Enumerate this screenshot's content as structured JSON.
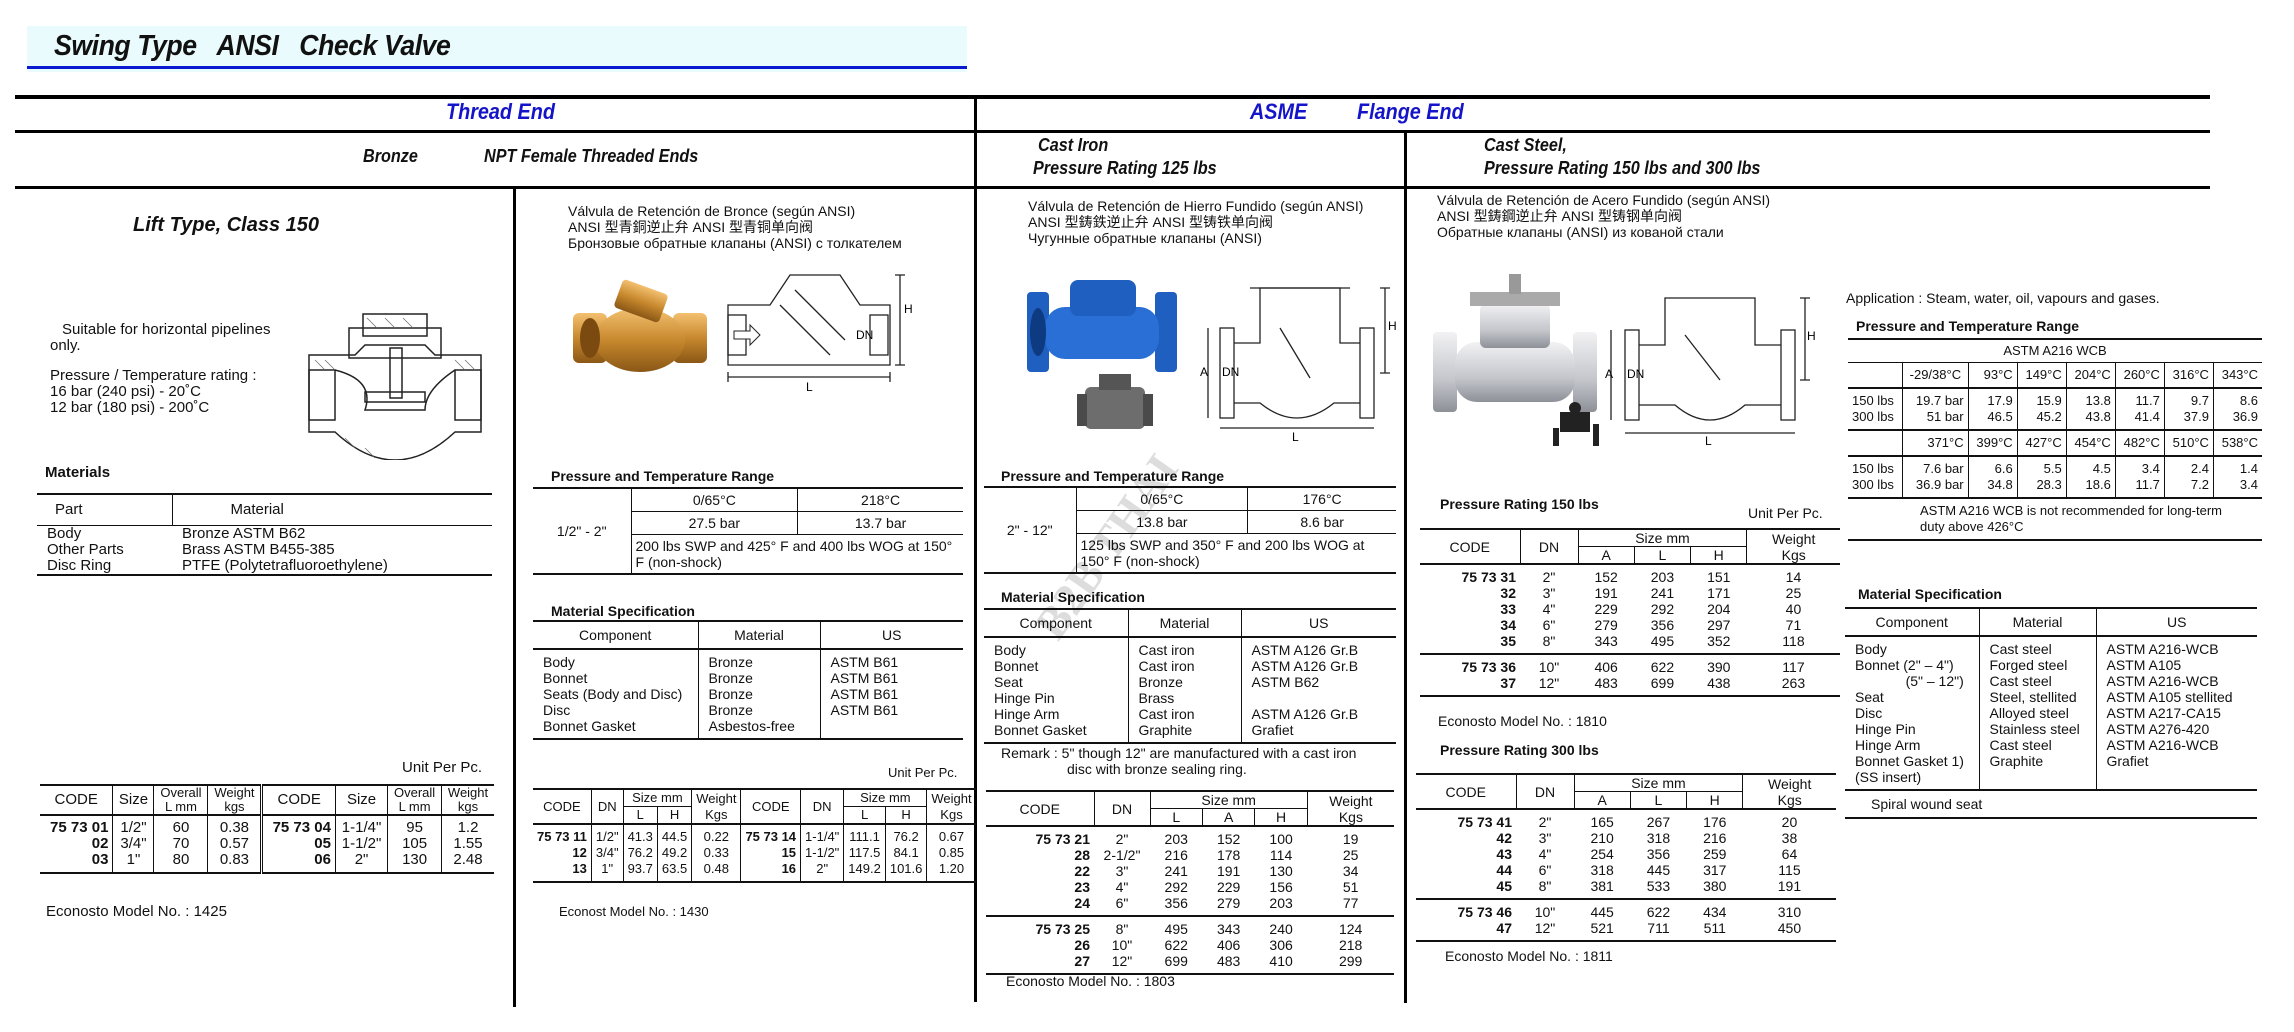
{
  "title": "Swing Type   ANSI   Check Valve",
  "sections": {
    "thread_end": "Thread End",
    "asme": "ASME",
    "flange_end": "Flange End"
  },
  "subheaders": {
    "bronze": "Bronze",
    "npt": "NPT Female Threaded Ends",
    "cast_iron": "Cast Iron",
    "cast_iron_rating": "Pressure Rating 125 lbs",
    "cast_steel": "Cast Steel,",
    "cast_steel_rating": "Pressure Rating 150 lbs and 300 lbs"
  },
  "watermark": "B2B THAI",
  "drawing_labels": {
    "h": "H",
    "dn": "DN",
    "l": "L",
    "a": "A"
  },
  "lift": {
    "title": "Lift Type, Class 150",
    "desc": [
      "Suitable for horizontal pipelines",
      "only.",
      "Pressure / Temperature rating :",
      "16 bar (240 psi) -  20˚C",
      "12 bar (180 psi) - 200˚C"
    ],
    "materials_heading": "Materials",
    "materials_headers": [
      "Part",
      "Material"
    ],
    "materials": [
      [
        "Body",
        "Bronze  ASTM B62"
      ],
      [
        "Other Parts",
        "Brass    ASTM B455-385"
      ],
      [
        "Disc Ring",
        "PTFE (Polytetrafluoroethylene)"
      ]
    ],
    "unit": "Unit Per Pc.",
    "headers": [
      "CODE",
      "Size",
      "Overall",
      "L mm",
      "Weight",
      "kgs"
    ],
    "rows": [
      [
        "75 73 01",
        "1/2\"",
        "60",
        "0.38",
        "75 73 04",
        "1-1/4\"",
        "95",
        "1.2"
      ],
      [
        "02",
        "3/4\"",
        "70",
        "0.57",
        "05",
        "1-1/2\"",
        "105",
        "1.55"
      ],
      [
        "03",
        "1\"",
        "80",
        "0.83",
        "06",
        "2\"",
        "130",
        "2.48"
      ]
    ],
    "model": "Econosto Model No. : 1425"
  },
  "bronze": {
    "names": [
      "Válvula de Retención de Bronce (según ANSI)",
      "ANSI 型青銅逆止弁     ANSI 型青铜单向阀",
      "Бронзовые обратные клапаны (ANSI)    с толкателем"
    ],
    "pt_heading": "Pressure and Temperature Range",
    "pt": {
      "size": "1/2\" - 2\"",
      "t1": "0/65°C",
      "t2": "218°C",
      "p1": "27.5 bar",
      "p2": "13.7 bar",
      "note": "200 lbs SWP and 425° F and 400 lbs WOG at 150° F (non-shock)"
    },
    "ms_heading": "Material Specification",
    "ms_headers": [
      "Component",
      "Material",
      "US"
    ],
    "ms": [
      [
        "Body",
        "Bronze",
        "ASTM B61"
      ],
      [
        "Bonnet",
        "Bronze",
        "ASTM B61"
      ],
      [
        "Seats (Body and Disc)",
        "Bronze",
        "ASTM B61"
      ],
      [
        "Disc",
        "Bronze",
        "ASTM B61"
      ],
      [
        "Bonnet Gasket",
        "Asbestos-free",
        ""
      ]
    ],
    "unit": "Unit Per Pc.",
    "headers": [
      "CODE",
      "DN",
      "Size mm",
      "L",
      "H",
      "Weight",
      "Kgs"
    ],
    "rows": [
      [
        "75 73 11",
        "1/2\"",
        "41.3",
        "44.5",
        "0.22",
        "75 73 14",
        "1-1/4\"",
        "111.1",
        "76.2",
        "0.67"
      ],
      [
        "12",
        "3/4\"",
        "76.2",
        "49.2",
        "0.33",
        "15",
        "1-1/2\"",
        "117.5",
        "84.1",
        "0.85"
      ],
      [
        "13",
        "1\"",
        "93.7",
        "63.5",
        "0.48",
        "16",
        "2\"",
        "149.2",
        "101.6",
        "1.20"
      ]
    ],
    "model": "Econost Model No. : 1430"
  },
  "cast_iron": {
    "names": [
      "Válvula de Retención de Hierro Fundido (según ANSI)",
      "ANSI 型鋳鉄逆止弁     ANSI 型铸铁单向阀",
      "Чугунные обратные клапаны (ANSI)"
    ],
    "pt_heading": "Pressure and Temperature Range",
    "pt": {
      "size": "2\" - 12\"",
      "t1": "0/65°C",
      "t2": "176°C",
      "p1": "13.8 bar",
      "p2": "8.6 bar",
      "note": "125 lbs SWP and 350° F and 200 lbs WOG at 150° F (non-shock)"
    },
    "ms_heading": "Material Specification",
    "ms_headers": [
      "Component",
      "Material",
      "US"
    ],
    "ms": [
      [
        "Body",
        "Cast iron",
        "ASTM A126 Gr.B"
      ],
      [
        "Bonnet",
        "Cast iron",
        "ASTM A126 Gr.B"
      ],
      [
        "Seat",
        "Bronze",
        "ASTM B62"
      ],
      [
        "Hinge Pin",
        "Brass",
        ""
      ],
      [
        "Hinge Arm",
        "Cast iron",
        "ASTM A126 Gr.B"
      ],
      [
        "Bonnet Gasket",
        "Graphite",
        "Grafiet"
      ]
    ],
    "remark": [
      "Remark : 5\" though 12\" are manufactured with a cast iron",
      "disc with bronze sealing ring."
    ],
    "headers": [
      "CODE",
      "DN",
      "Size mm",
      "L",
      "A",
      "H",
      "Weight",
      "Kgs"
    ],
    "groups": [
      [
        [
          "75 73 21",
          "2\"",
          "203",
          "152",
          "100",
          "19"
        ],
        [
          "28",
          "2-1/2\"",
          "216",
          "178",
          "114",
          "25"
        ],
        [
          "22",
          "3\"",
          "241",
          "191",
          "130",
          "34"
        ],
        [
          "23",
          "4\"",
          "292",
          "229",
          "156",
          "51"
        ],
        [
          "24",
          "6\"",
          "356",
          "279",
          "203",
          "77"
        ]
      ],
      [
        [
          "75 73 25",
          "8\"",
          "495",
          "343",
          "240",
          "124"
        ],
        [
          "26",
          "10\"",
          "622",
          "406",
          "306",
          "218"
        ],
        [
          "27",
          "12\"",
          "699",
          "483",
          "410",
          "299"
        ]
      ]
    ],
    "model": "Econosto Model No. : 1803"
  },
  "cast_steel": {
    "names": [
      "Válvula de Retención de Acero Fundido (según ANSI)",
      "ANSI 型鋳鋼逆止弁     ANSI 型铸钢单向阀",
      "Обратные клапаны (ANSI)  из кованой стали"
    ],
    "r150": {
      "heading": "Pressure Rating 150 lbs",
      "unit": "Unit Per Pc.",
      "headers": [
        "CODE",
        "DN",
        "Size mm",
        "A",
        "L",
        "H",
        "Weight",
        "Kgs"
      ],
      "groups": [
        [
          [
            "75 73 31",
            "2\"",
            "152",
            "203",
            "151",
            "14"
          ],
          [
            "32",
            "3\"",
            "191",
            "241",
            "171",
            "25"
          ],
          [
            "33",
            "4\"",
            "229",
            "292",
            "204",
            "40"
          ],
          [
            "34",
            "6\"",
            "279",
            "356",
            "297",
            "71"
          ],
          [
            "35",
            "8\"",
            "343",
            "495",
            "352",
            "118"
          ]
        ],
        [
          [
            "75 73 36",
            "10\"",
            "406",
            "622",
            "390",
            "117"
          ],
          [
            "37",
            "12\"",
            "483",
            "699",
            "438",
            "263"
          ]
        ]
      ],
      "model": "Econosto Model No. : 1810"
    },
    "r300": {
      "heading": "Pressure Rating 300 lbs",
      "headers": [
        "CODE",
        "DN",
        "Size mm",
        "A",
        "L",
        "H",
        "Weight",
        "Kgs"
      ],
      "groups": [
        [
          [
            "75 73 41",
            "2\"",
            "165",
            "267",
            "176",
            "20"
          ],
          [
            "42",
            "3\"",
            "210",
            "318",
            "216",
            "38"
          ],
          [
            "43",
            "4\"",
            "254",
            "356",
            "259",
            "64"
          ],
          [
            "44",
            "6\"",
            "318",
            "445",
            "317",
            "115"
          ],
          [
            "45",
            "8\"",
            "381",
            "533",
            "380",
            "191"
          ]
        ],
        [
          [
            "75 73 46",
            "10\"",
            "445",
            "622",
            "434",
            "310"
          ],
          [
            "47",
            "12\"",
            "521",
            "711",
            "511",
            "450"
          ]
        ]
      ],
      "model": "Econosto Model No. : 1811"
    },
    "application": "Application : Steam, water, oil, vapours and gases.",
    "pt_heading": "Pressure and Temperature Range",
    "pt_material": "ASTM A216 WCB",
    "pt_groups": [
      [
        [
          "",
          "-29/38°C",
          "93°C",
          "149°C",
          "204°C",
          "260°C",
          "316°C",
          "343°C"
        ]
      ],
      [
        [
          "150 lbs",
          "19.7 bar",
          "17.9",
          "15.9",
          "13.8",
          "11.7",
          "9.7",
          "8.6"
        ],
        [
          "300 lbs",
          "51 bar",
          "46.5",
          "45.2",
          "43.8",
          "41.4",
          "37.9",
          "36.9"
        ]
      ],
      [
        [
          "",
          "371°C",
          "399°C",
          "427°C",
          "454°C",
          "482°C",
          "510°C",
          "538°C"
        ]
      ],
      [
        [
          "150 lbs",
          "7.6 bar",
          "6.6",
          "5.5",
          "4.5",
          "3.4",
          "2.4",
          "1.4"
        ],
        [
          "300 lbs",
          "36.9 bar",
          "34.8",
          "28.3",
          "18.6",
          "11.7",
          "7.2",
          "3.4"
        ]
      ]
    ],
    "pt_note": [
      "ASTM A216 WCB is not recommended for long-term",
      "duty above 426°C"
    ],
    "ms_heading": "Material Specification",
    "ms_headers": [
      "Component",
      "Material",
      "US"
    ],
    "ms": [
      [
        "Body",
        "Cast steel",
        "ASTM A216-WCB"
      ],
      [
        "Bonnet (2\" – 4\")",
        "Forged steel",
        "ASTM A105"
      ],
      [
        "             (5\" – 12\")",
        "Cast steel",
        "ASTM A216-WCB"
      ],
      [
        "Seat",
        "Steel, stellited",
        "ASTM A105 stellited"
      ],
      [
        "Disc",
        "Alloyed steel",
        "ASTM A217-CA15"
      ],
      [
        "Hinge Pin",
        "Stainless steel",
        "ASTM A276-420"
      ],
      [
        "Hinge Arm",
        "Cast steel",
        "ASTM A216-WCB"
      ],
      [
        "Bonnet Gasket 1)",
        "Graphite",
        "Grafiet"
      ],
      [
        "(SS insert)",
        "",
        ""
      ]
    ],
    "ms_footer": "Spiral wound seat"
  },
  "colors": {
    "title_blue": "#0a1ad0",
    "section_blue": "#1414c8",
    "banner_bg": "#e9fbfc",
    "brass": "#c8892e",
    "cast_iron_blue": "#1f5fc0"
  }
}
